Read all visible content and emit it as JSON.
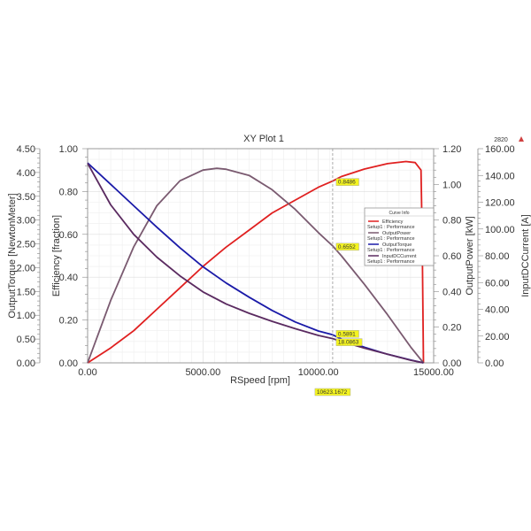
{
  "chart_data": {
    "type": "line",
    "title": "XY Plot 1",
    "corner_label": "2820",
    "xlabel": "RSpeed [rpm]",
    "xlim": [
      0,
      15000
    ],
    "xticks": [
      "0.00",
      "5000.00",
      "10000.00",
      "15000.00"
    ],
    "axes": {
      "torque": {
        "label": "OutputTorque [NewtonMeter]",
        "lim": [
          0,
          4.5
        ],
        "ticks": [
          "0.00",
          "0.50",
          "1.00",
          "1.50",
          "2.00",
          "2.50",
          "3.00",
          "3.50",
          "4.00",
          "4.50"
        ]
      },
      "efficiency": {
        "label": "Efficiency [fraction]",
        "lim": [
          0,
          1
        ],
        "ticks": [
          "0.00",
          "0.20",
          "0.40",
          "0.60",
          "0.80",
          "1.00"
        ]
      },
      "power": {
        "label": "OutputPower [kW]",
        "lim": [
          0,
          1.2
        ],
        "ticks": [
          "0.00",
          "0.20",
          "0.40",
          "0.60",
          "0.80",
          "1.00",
          "1.20"
        ]
      },
      "current": {
        "label": "InputDCCurrent [A]",
        "lim": [
          0,
          160
        ],
        "ticks": [
          "0.00",
          "20.00",
          "40.00",
          "60.00",
          "80.00",
          "100.00",
          "120.00",
          "140.00",
          "160.00"
        ]
      }
    },
    "grid": true,
    "legend": {
      "title": "Curve Info",
      "placement": "right"
    },
    "series": [
      {
        "name": "Efficiency",
        "setup": "Setup1 : Performance",
        "axis": "efficiency",
        "color": "#e02020",
        "x": [
          0,
          1000,
          2000,
          3000,
          4000,
          5000,
          6000,
          7000,
          8000,
          9000,
          10000,
          10623,
          11000,
          12000,
          13000,
          13800,
          14200,
          14450,
          14500,
          14560
        ],
        "y": [
          0,
          0.07,
          0.15,
          0.25,
          0.35,
          0.45,
          0.54,
          0.62,
          0.7,
          0.76,
          0.82,
          0.8486,
          0.87,
          0.905,
          0.93,
          0.94,
          0.935,
          0.9,
          0.6,
          0
        ]
      },
      {
        "name": "OutputPower",
        "setup": "Setup1 : Performance",
        "axis": "power",
        "color": "#7a5a70",
        "x": [
          0,
          1000,
          2000,
          3000,
          4000,
          5000,
          5600,
          6000,
          7000,
          8000,
          9000,
          10000,
          10623,
          11000,
          12000,
          13000,
          14000,
          14560
        ],
        "y": [
          0,
          0.35,
          0.65,
          0.88,
          1.02,
          1.08,
          1.09,
          1.085,
          1.05,
          0.97,
          0.86,
          0.73,
          0.6552,
          0.6,
          0.44,
          0.27,
          0.09,
          0
        ]
      },
      {
        "name": "OutputTorque",
        "setup": "Setup1 : Performance",
        "axis": "torque",
        "color": "#1a1aa8",
        "x": [
          0,
          1000,
          2000,
          3000,
          4000,
          5000,
          6000,
          7000,
          8000,
          9000,
          10000,
          10623,
          11000,
          12000,
          13000,
          14000,
          14560
        ],
        "y": [
          4.2,
          3.75,
          3.3,
          2.85,
          2.42,
          2.02,
          1.68,
          1.38,
          1.1,
          0.86,
          0.67,
          0.5891,
          0.5,
          0.33,
          0.18,
          0.06,
          0
        ]
      },
      {
        "name": "InputDCCurrent",
        "setup": "Setup1 : Performance",
        "axis": "current",
        "color": "#5a2a60",
        "x": [
          0,
          1000,
          2000,
          3000,
          4000,
          5000,
          6000,
          7000,
          8000,
          9000,
          10000,
          10623,
          11000,
          12000,
          13000,
          14000,
          14560
        ],
        "y": [
          149,
          118,
          96,
          79,
          65,
          53,
          44,
          37,
          31,
          25.5,
          20.5,
          18.0863,
          16,
          11,
          6.5,
          2,
          0
        ]
      }
    ],
    "marker": {
      "x_label": "10623.1672",
      "x": 10623.1672,
      "values": [
        {
          "series": "Efficiency",
          "label": "0.8486"
        },
        {
          "series": "OutputPower",
          "label": "0.6552"
        },
        {
          "series": "OutputTorque",
          "label": "0.5891"
        },
        {
          "series": "InputDCCurrent",
          "label": "18.0863"
        }
      ]
    }
  }
}
